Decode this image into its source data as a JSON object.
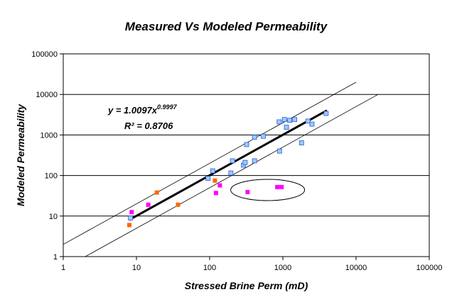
{
  "chart_data": {
    "type": "scatter",
    "title": "Measured Vs Modeled Permeability",
    "xlabel": "Stressed Brine Perm (mD)",
    "ylabel": "Modeled Permeability",
    "xscale": "log",
    "yscale": "log",
    "xlim": [
      1,
      100000
    ],
    "ylim": [
      1,
      100000
    ],
    "x_ticks": [
      "1",
      "10",
      "100",
      "1000",
      "10000",
      "100000"
    ],
    "y_ticks": [
      "1",
      "10",
      "100",
      "1000",
      "10000",
      "100000"
    ],
    "grid": "horizontal major",
    "legend": "none",
    "equation": {
      "base": "y = 1.0097x",
      "exponent": "0.9997",
      "r2": "R² = 0.8706"
    },
    "colors": {
      "blue": "#99ccff",
      "blue_edge": "#3355cc",
      "orange": "#ff6600",
      "magenta": "#ff00ff",
      "trend": "#000000",
      "bounds": "#000000"
    },
    "series": [
      {
        "color": "blue",
        "points": [
          [
            8.3,
            9
          ],
          [
            95,
            85
          ],
          [
            110,
            130
          ],
          [
            205,
            230
          ],
          [
            195,
            115
          ],
          [
            290,
            180
          ],
          [
            305,
            210
          ],
          [
            320,
            580
          ],
          [
            410,
            230
          ],
          [
            410,
            880
          ],
          [
            540,
            930
          ],
          [
            890,
            2100
          ],
          [
            900,
            400
          ],
          [
            1050,
            2400
          ],
          [
            1120,
            1550
          ],
          [
            1240,
            2300
          ],
          [
            1450,
            2400
          ],
          [
            1800,
            640
          ],
          [
            2200,
            2200
          ],
          [
            2500,
            1850
          ],
          [
            3900,
            3400
          ]
        ]
      },
      {
        "color": "orange",
        "points": [
          [
            8.0,
            6
          ],
          [
            19,
            38
          ],
          [
            37,
            19
          ],
          [
            118,
            75
          ]
        ]
      },
      {
        "color": "magenta",
        "points": [
          [
            8.6,
            12.5
          ],
          [
            14.5,
            19
          ],
          [
            122,
            37
          ],
          [
            138,
            57
          ],
          [
            330,
            39
          ],
          [
            840,
            52
          ],
          [
            960,
            52
          ]
        ]
      }
    ],
    "trendline": {
      "x": [
        8,
        4000
      ],
      "a": 1.0097,
      "b": 0.9997
    },
    "bound_lines": [
      {
        "x1": 1,
        "y1": 2,
        "x2": 10000,
        "y2": 20000
      },
      {
        "x1": 2,
        "y1": 1,
        "x2": 20000,
        "y2": 10000
      }
    ],
    "ellipse_annotation": {
      "cx": 620,
      "cy": 44,
      "note": "outlier group circled"
    }
  }
}
